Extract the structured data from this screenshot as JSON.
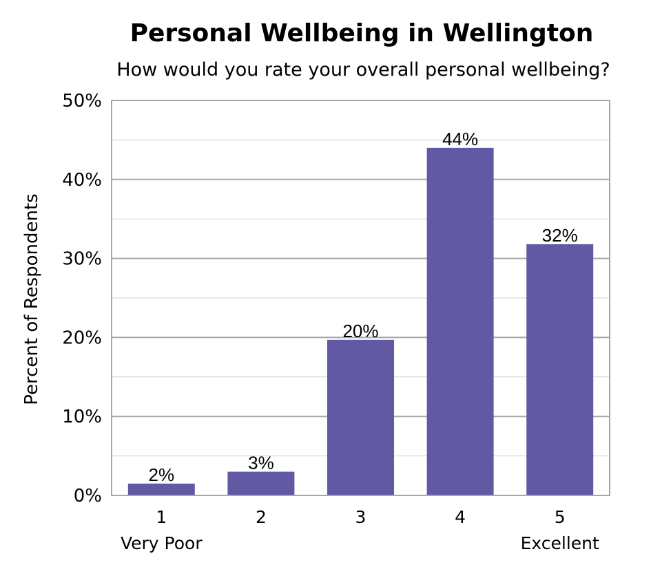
{
  "colors": {
    "bar": "#6159a3",
    "major_grid": "#a6a6a6",
    "minor_grid": "#d0d0d0",
    "frame": "#a6a6a6"
  },
  "chart_data": {
    "type": "bar",
    "title": "Personal Wellbeing in Wellington",
    "subtitle": "How would you rate your overall personal wellbeing?",
    "ylabel": "Percent of Respondents",
    "xlabel": "",
    "categories": [
      "1",
      "2",
      "3",
      "4",
      "5"
    ],
    "category_sublabels": [
      "Very Poor",
      "",
      "",
      "",
      "Excellent"
    ],
    "values": [
      1.5,
      3,
      19.7,
      44,
      31.8
    ],
    "data_labels": [
      "2%",
      "3%",
      "20%",
      "44%",
      "32%"
    ],
    "ylim": [
      0,
      50
    ],
    "yticks": [
      0,
      10,
      20,
      30,
      40,
      50
    ],
    "ytick_labels": [
      "0%",
      "10%",
      "20%",
      "30%",
      "40%",
      "50%"
    ],
    "minor_gridlines_every": 5,
    "grid": true
  }
}
